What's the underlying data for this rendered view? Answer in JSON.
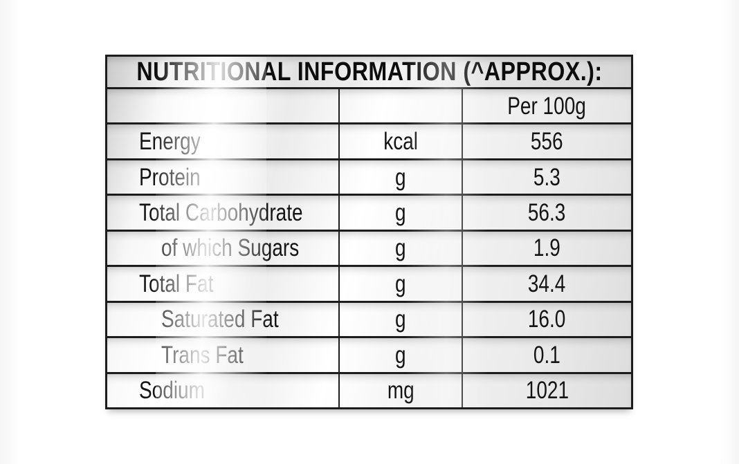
{
  "table": {
    "title": "NUTRITIONAL INFORMATION (^APPROX.):",
    "per_column_header": "Per 100g",
    "rows": [
      {
        "label": "Energy",
        "unit": "kcal",
        "value": "556",
        "indent": false
      },
      {
        "label": "Protein",
        "unit": "g",
        "value": "5.3",
        "indent": false
      },
      {
        "label": "Total Carbohydrate",
        "unit": "g",
        "value": "56.3",
        "indent": false
      },
      {
        "label": "of which Sugars",
        "unit": "g",
        "value": "1.9",
        "indent": true
      },
      {
        "label": "Total Fat",
        "unit": "g",
        "value": "34.4",
        "indent": false
      },
      {
        "label": "Saturated Fat",
        "unit": "g",
        "value": "16.0",
        "indent": true
      },
      {
        "label": "Trans Fat",
        "unit": "g",
        "value": "0.1",
        "indent": true
      },
      {
        "label": "Sodium",
        "unit": "mg",
        "value": "1021",
        "indent": false
      }
    ],
    "colors": {
      "border": "#1c1c1c",
      "text": "#141414",
      "background": "#ffffff"
    }
  }
}
